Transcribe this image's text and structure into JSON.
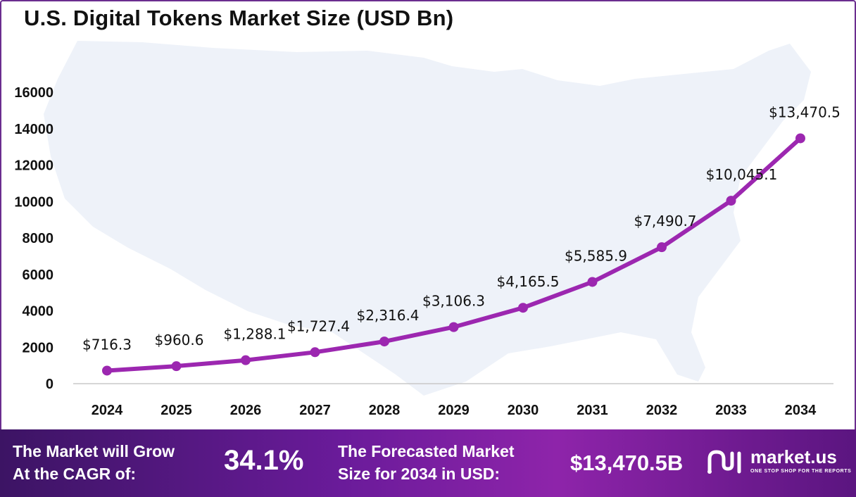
{
  "title": "U.S. Digital Tokens Market Size (USD Bn)",
  "chart_data": {
    "type": "line",
    "title": "U.S. Digital Tokens Market Size (USD Bn)",
    "x": [
      "2024",
      "2025",
      "2026",
      "2027",
      "2028",
      "2029",
      "2030",
      "2031",
      "2032",
      "2033",
      "2034"
    ],
    "series": [
      {
        "values": [
          716.3,
          960.6,
          1288.1,
          1727.4,
          2316.4,
          3106.3,
          4165.5,
          5585.9,
          7490.7,
          10045.1,
          13470.5
        ],
        "data_labels": [
          "$716.3",
          "$960.6",
          "$1,288.1",
          "$1,727.4",
          "$2,316.4",
          "$3,106.3",
          "$4,165.5",
          "$5,585.9",
          "$7,490.7",
          "$10,045.1",
          "$13,470.5"
        ]
      }
    ],
    "yticks": [
      "0",
      "2000",
      "4000",
      "6000",
      "8000",
      "10000",
      "12000",
      "14000",
      "16000"
    ],
    "ylim": [
      0,
      16000
    ],
    "grid": false,
    "line_color": "#9c27b0",
    "marker_color": "#9c27b0",
    "background_map_color": "#eef2f9"
  },
  "footer": {
    "cagr_label_line1": "The Market will Grow",
    "cagr_label_line2": "At the CAGR of:",
    "cagr_value": "34.1%",
    "forecast_label_line1": "The Forecasted Market",
    "forecast_label_line2": "Size for 2034 in USD:",
    "forecast_value": "$13,470.5B",
    "brand_name": "market.us",
    "brand_tagline": "ONE STOP SHOP FOR THE REPORTS"
  }
}
